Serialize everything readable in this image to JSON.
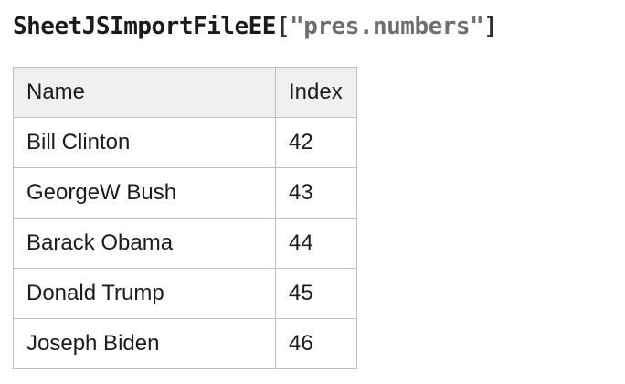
{
  "title": {
    "object": "SheetJSImportFileEE",
    "open_bracket": "[",
    "file_string": "\"pres.numbers\"",
    "close_bracket": "]"
  },
  "table": {
    "columns": [
      "Name",
      "Index"
    ],
    "rows": [
      {
        "name": "Bill Clinton",
        "index": "42"
      },
      {
        "name": "GeorgeW Bush",
        "index": "43"
      },
      {
        "name": "Barack Obama",
        "index": "44"
      },
      {
        "name": "Donald Trump",
        "index": "45"
      },
      {
        "name": "Joseph Biden",
        "index": "46"
      }
    ]
  },
  "colors": {
    "title_text": "#1b1b1b",
    "title_string": "#6e6e6e",
    "table_border": "#c1c1c1",
    "header_background": "#f0f0f0",
    "cell_text": "#1c1c1c",
    "page_background": "#ffffff"
  }
}
